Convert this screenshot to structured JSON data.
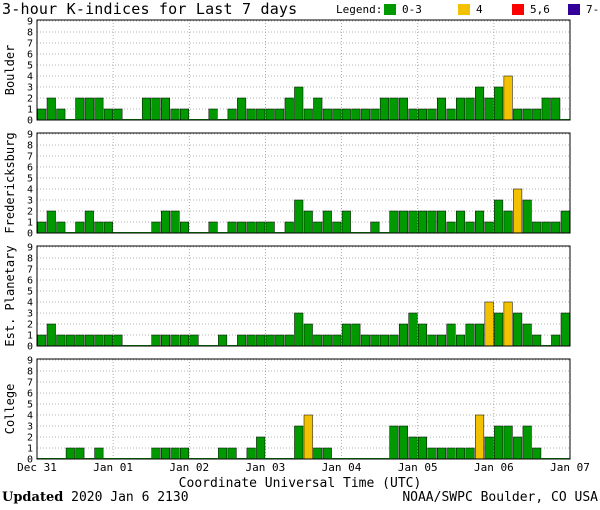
{
  "title": "3-hour K-indices for Last 7 days",
  "legend": {
    "label": "Legend:",
    "items": [
      {
        "text": "0-3",
        "color": "#009900"
      },
      {
        "text": "4",
        "color": "#f2c200"
      },
      {
        "text": "5,6",
        "color": "#ff0000"
      },
      {
        "text": "7-9",
        "color": "#330099"
      }
    ]
  },
  "footer": {
    "updated_label": "Updated",
    "updated_value": "2020 Jan  6 2130",
    "credit": "NOAA/SWPC Boulder, CO USA"
  },
  "chart_data": {
    "type": "bar",
    "x_axis_title": "Coordinate Universal Time (UTC)",
    "x_tick_labels": [
      "Dec 31",
      "Jan 01",
      "Jan 02",
      "Jan 03",
      "Jan 04",
      "Jan 05",
      "Jan 06",
      "Jan 07"
    ],
    "ylim": [
      0,
      9
    ],
    "y_ticks": [
      0,
      1,
      2,
      3,
      4,
      5,
      6,
      7,
      8,
      9
    ],
    "color_scale": {
      "0-3": "#009900",
      "4": "#f2c200",
      "5,6": "#ff0000",
      "7-9": "#330099"
    },
    "panels": [
      {
        "name": "Boulder",
        "values": [
          1,
          2,
          1,
          0,
          2,
          2,
          2,
          1,
          1,
          0,
          0,
          2,
          2,
          2,
          1,
          1,
          0,
          0,
          1,
          0,
          1,
          2,
          1,
          1,
          1,
          1,
          2,
          3,
          1,
          2,
          1,
          1,
          1,
          1,
          1,
          1,
          2,
          2,
          2,
          1,
          1,
          1,
          2,
          1,
          2,
          2,
          3,
          2,
          3,
          4,
          1,
          1,
          1,
          2,
          2,
          0
        ]
      },
      {
        "name": "Fredericksburg",
        "values": [
          1,
          2,
          1,
          0,
          1,
          2,
          1,
          1,
          0,
          0,
          0,
          0,
          1,
          2,
          2,
          1,
          0,
          0,
          1,
          0,
          1,
          1,
          1,
          1,
          1,
          0,
          1,
          3,
          2,
          1,
          2,
          1,
          2,
          0,
          0,
          1,
          0,
          2,
          2,
          2,
          2,
          2,
          2,
          1,
          2,
          1,
          2,
          1,
          3,
          2,
          4,
          3,
          1,
          1,
          1,
          2,
          2,
          0
        ]
      },
      {
        "name": "Est. Planetary",
        "values": [
          1,
          2,
          1,
          1,
          1,
          1,
          1,
          1,
          1,
          0,
          0,
          0,
          1,
          1,
          1,
          1,
          1,
          0,
          0,
          1,
          0,
          1,
          1,
          1,
          1,
          1,
          1,
          3,
          2,
          1,
          1,
          1,
          2,
          2,
          1,
          1,
          1,
          1,
          2,
          3,
          2,
          1,
          1,
          2,
          1,
          2,
          2,
          4,
          3,
          4,
          3,
          2,
          1,
          0,
          1,
          3
        ]
      },
      {
        "name": "College",
        "values": [
          0,
          0,
          0,
          1,
          1,
          0,
          1,
          0,
          0,
          0,
          0,
          0,
          1,
          1,
          1,
          1,
          0,
          0,
          0,
          1,
          1,
          0,
          1,
          2,
          0,
          0,
          0,
          3,
          4,
          1,
          1,
          0,
          0,
          0,
          0,
          0,
          0,
          3,
          3,
          2,
          2,
          1,
          1,
          1,
          1,
          1,
          4,
          2,
          3,
          3,
          2,
          3,
          1,
          0,
          0,
          0,
          1,
          0
        ]
      }
    ]
  }
}
